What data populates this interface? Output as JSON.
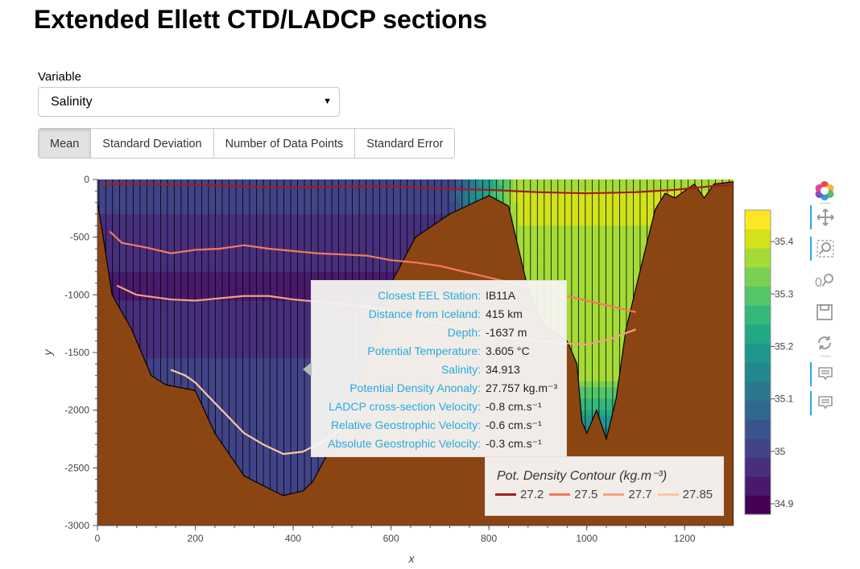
{
  "page": {
    "title": "Extended Ellett CTD/LADCP sections"
  },
  "controls": {
    "variable_label": "Variable",
    "variable_value": "Salinity",
    "stat_buttons": [
      {
        "label": "Mean",
        "active": true
      },
      {
        "label": "Standard Deviation",
        "active": false
      },
      {
        "label": "Number of Data Points",
        "active": false
      },
      {
        "label": "Standard Error",
        "active": false
      }
    ]
  },
  "tooltip": {
    "rows": [
      {
        "key": "Closest EEL Station:",
        "value": "IB11A"
      },
      {
        "key": "Distance from Iceland:",
        "value": "415 km"
      },
      {
        "key": "Depth:",
        "value": "-1637 m"
      },
      {
        "key": "Potential Temperature:",
        "value": "3.605 °C"
      },
      {
        "key": "Salinity:",
        "value": "34.913"
      },
      {
        "key": "Potential Density Anonaly:",
        "value": "27.757 kg.m⁻³"
      },
      {
        "key": "LADCP cross-section Velocity:",
        "value": "-0.8 cm.s⁻¹"
      },
      {
        "key": "Relative Geostrophic Velocity:",
        "value": "-0.6 cm.s⁻¹"
      },
      {
        "key": "Absolute Geostrophic Velocity:",
        "value": "-0.3 cm.s⁻¹"
      }
    ]
  },
  "chart_data": {
    "type": "heatmap",
    "xlabel": "x",
    "ylabel": "y",
    "xlim": [
      0,
      1300
    ],
    "ylim": [
      -3000,
      0
    ],
    "x_ticks": [
      0,
      200,
      400,
      600,
      800,
      1000,
      1200
    ],
    "y_ticks": [
      0,
      -500,
      -1000,
      -1500,
      -2000,
      -2500,
      -3000
    ],
    "colorbar": {
      "range": [
        34.88,
        35.46
      ],
      "ticks": [
        34.9,
        35,
        35.1,
        35.2,
        35.3,
        35.4
      ],
      "tick_labels": [
        "34.9",
        "35",
        "35.1",
        "35.2",
        "35.3",
        "35.4"
      ],
      "colors": [
        "#440154",
        "#481a6c",
        "#472f7d",
        "#414487",
        "#39568c",
        "#31688e",
        "#2a788e",
        "#23888e",
        "#1f988b",
        "#22a884",
        "#35b779",
        "#54c568",
        "#7ad151",
        "#a5db36",
        "#d2e21b",
        "#fde725"
      ]
    },
    "bathymetry_color": "#8b4513",
    "bathymetry": [
      [
        0,
        -200
      ],
      [
        10,
        -450
      ],
      [
        30,
        -1000
      ],
      [
        70,
        -1300
      ],
      [
        110,
        -1700
      ],
      [
        140,
        -1780
      ],
      [
        200,
        -1830
      ],
      [
        240,
        -2200
      ],
      [
        300,
        -2570
      ],
      [
        360,
        -2700
      ],
      [
        380,
        -2740
      ],
      [
        420,
        -2700
      ],
      [
        440,
        -2620
      ],
      [
        480,
        -2300
      ],
      [
        520,
        -2000
      ],
      [
        560,
        -1400
      ],
      [
        600,
        -900
      ],
      [
        650,
        -500
      ],
      [
        720,
        -300
      ],
      [
        800,
        -140
      ],
      [
        840,
        -230
      ],
      [
        880,
        -950
      ],
      [
        910,
        -1250
      ],
      [
        960,
        -1400
      ],
      [
        980,
        -1600
      ],
      [
        990,
        -2100
      ],
      [
        1000,
        -2200
      ],
      [
        1020,
        -2000
      ],
      [
        1040,
        -2250
      ],
      [
        1060,
        -1900
      ],
      [
        1080,
        -1300
      ],
      [
        1100,
        -950
      ],
      [
        1120,
        -600
      ],
      [
        1140,
        -260
      ],
      [
        1160,
        -120
      ],
      [
        1180,
        -160
      ],
      [
        1220,
        -40
      ],
      [
        1240,
        -160
      ],
      [
        1260,
        -40
      ],
      [
        1300,
        -20
      ]
    ],
    "series": [
      {
        "name": "27.2",
        "color": "#a11d21",
        "x": [
          10,
          100,
          200,
          300,
          400,
          500,
          600,
          700,
          800,
          900,
          1000,
          1100,
          1180,
          1250,
          1300
        ],
        "y": [
          -40,
          -40,
          -45,
          -60,
          -70,
          -60,
          -60,
          -80,
          -90,
          -110,
          -120,
          -110,
          -90,
          -60,
          -50
        ]
      },
      {
        "name": "27.5",
        "color": "#f37a5b",
        "x": [
          25,
          50,
          100,
          150,
          200,
          250,
          300,
          350,
          400,
          450,
          500,
          550,
          600,
          650,
          700,
          750,
          800,
          850,
          900,
          950,
          1000,
          1050,
          1100
        ],
        "y": [
          -450,
          -550,
          -590,
          -640,
          -610,
          -600,
          -570,
          -600,
          -620,
          -640,
          -650,
          -660,
          -700,
          -720,
          -750,
          -800,
          -850,
          -900,
          -950,
          -1000,
          -1050,
          -1100,
          -1150
        ]
      },
      {
        "name": "27.7",
        "color": "#f3a080",
        "x": [
          40,
          80,
          150,
          200,
          250,
          300,
          350,
          400,
          450,
          500,
          550,
          600,
          650,
          700,
          750,
          800,
          850,
          900,
          950,
          1000,
          1050,
          1100
        ],
        "y": [
          -920,
          -1000,
          -1040,
          -1050,
          -1030,
          -1010,
          -1010,
          -1040,
          -1060,
          -1080,
          -1100,
          -1150,
          -1200,
          -1250,
          -1300,
          -1350,
          -1380,
          -1400,
          -1420,
          -1430,
          -1380,
          -1300
        ]
      },
      {
        "name": "27.85",
        "color": "#fbc6a4",
        "x": [
          150,
          180,
          200,
          220,
          300,
          340,
          380,
          420,
          470,
          520
        ],
        "y": [
          -1650,
          -1700,
          -1760,
          -1850,
          -2200,
          -2300,
          -2380,
          -2360,
          -2250,
          -2100
        ]
      }
    ],
    "legend_title": "Pot. Density Contour (kg.m⁻³)",
    "legend_placement": "bottom-right",
    "grid": false
  },
  "toolbar": {
    "tools": [
      "bokeh-logo-icon",
      "pan-icon",
      "zoom-icon",
      "box-zoom-icon",
      "save-icon",
      "reset-icon",
      "hover-icon",
      "hover-icon"
    ]
  }
}
